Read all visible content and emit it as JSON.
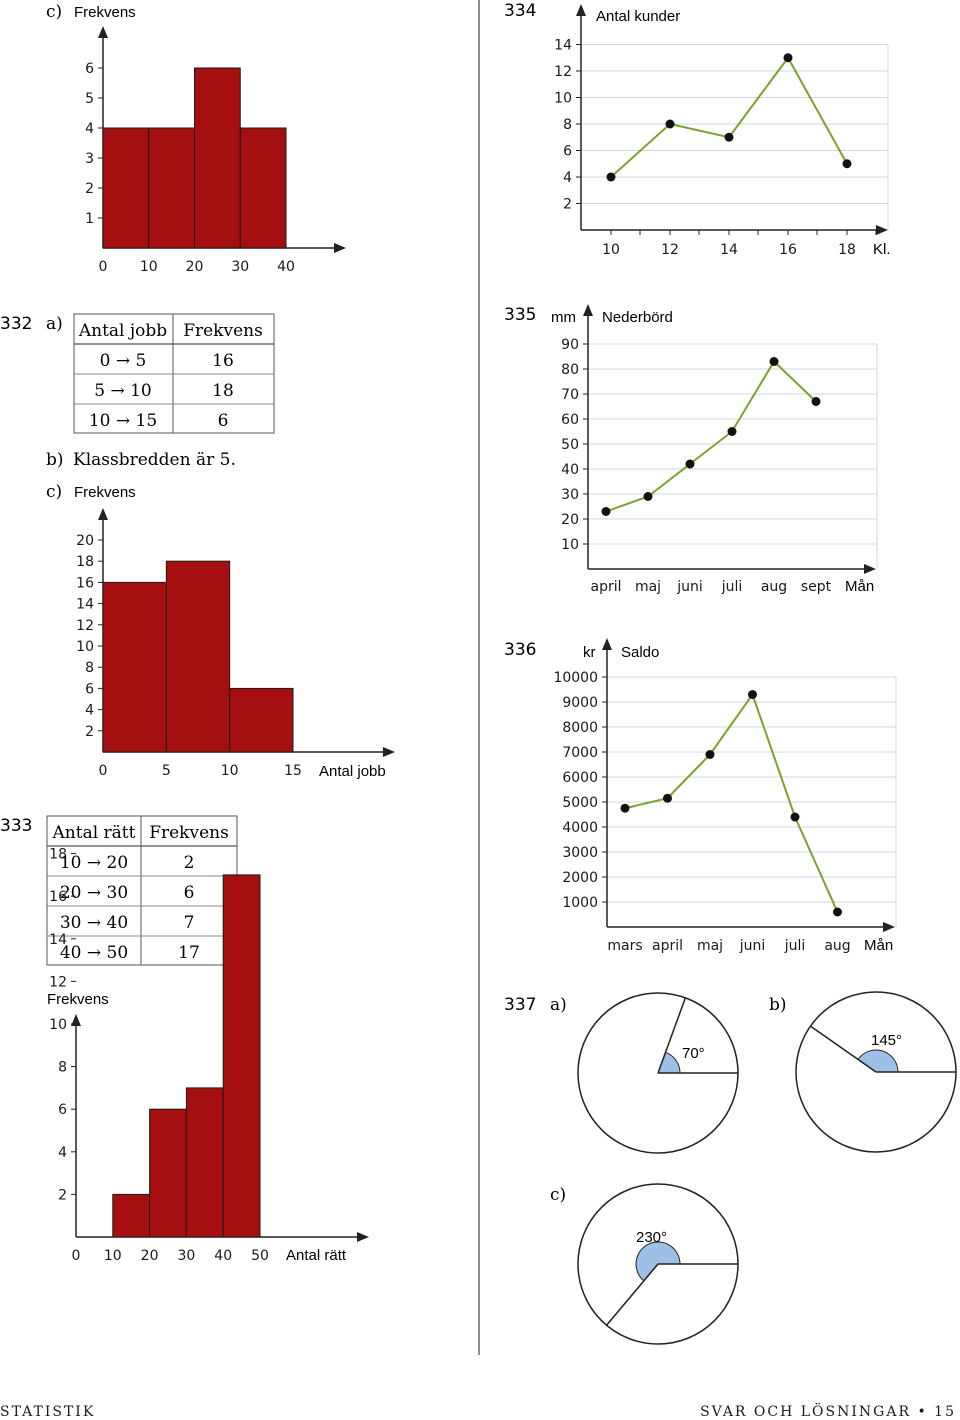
{
  "page": {
    "footer_left": "STATISTIK",
    "footer_right": "SVAR OCH LÖSNINGAR",
    "page_number": "15",
    "bullet": "•"
  },
  "colors": {
    "bar": "#a50f0f",
    "line": "#7aa22c",
    "grid": "#cfd8e3",
    "angle": "#9fc0e6"
  },
  "p331c": {
    "part": "c)",
    "ylabel": "Frekvens"
  },
  "p332": {
    "number": "332",
    "a_label": "a)",
    "table": {
      "headers": [
        "Antal jobb",
        "Frekvens"
      ],
      "rows": [
        [
          "0 → 5",
          "16"
        ],
        [
          "5 → 10",
          "18"
        ],
        [
          "10 → 15",
          "6"
        ]
      ]
    },
    "b_label": "b)",
    "b_text": "Klassbredden är 5.",
    "c_label": "c)",
    "c_ylabel": "Frekvens",
    "c_xlabel": "Antal jobb"
  },
  "p333": {
    "number": "333",
    "table": {
      "headers": [
        "Antal rätt",
        "Frekvens"
      ],
      "rows": [
        [
          "10 → 20",
          "2"
        ],
        [
          "20 → 30",
          "6"
        ],
        [
          "30 → 40",
          "7"
        ],
        [
          "40 → 50",
          "17"
        ]
      ]
    },
    "ylabel": "Frekvens",
    "xlabel": "Antal rätt"
  },
  "p334": {
    "number": "334",
    "title": "Antal kunder",
    "xunit": "Kl."
  },
  "p335": {
    "number": "335",
    "yunit": "mm",
    "title": "Nederbörd",
    "xunit": "Mån"
  },
  "p336": {
    "number": "336",
    "yunit": "kr",
    "title": "Saldo",
    "xunit": "Mån"
  },
  "p337": {
    "number": "337",
    "a_label": "a)",
    "a_angle": "70°",
    "b_label": "b)",
    "b_angle": "145°",
    "c_label": "c)",
    "c_angle": "230°",
    "angles": [
      70,
      145,
      230
    ]
  },
  "chart_data": [
    {
      "id": "hist331c",
      "type": "bar",
      "title": "",
      "xlabel": "",
      "ylabel": "Frekvens",
      "bins": [
        [
          0,
          10
        ],
        [
          10,
          20
        ],
        [
          20,
          30
        ],
        [
          30,
          40
        ]
      ],
      "values": [
        4,
        4,
        6,
        4
      ],
      "xticks": [
        0,
        10,
        20,
        30,
        40
      ],
      "yticks": [
        1,
        2,
        3,
        4,
        5,
        6
      ],
      "grid": false
    },
    {
      "id": "hist332",
      "type": "bar",
      "title": "",
      "xlabel": "Antal jobb",
      "ylabel": "Frekvens",
      "bins": [
        [
          0,
          5
        ],
        [
          5,
          10
        ],
        [
          10,
          15
        ]
      ],
      "values": [
        16,
        18,
        6
      ],
      "xticks": [
        0,
        5,
        10,
        15
      ],
      "yticks": [
        2,
        4,
        6,
        8,
        10,
        12,
        14,
        16,
        18,
        20
      ],
      "grid": false
    },
    {
      "id": "hist333",
      "type": "bar",
      "title": "",
      "xlabel": "Antal rätt",
      "ylabel": "Frekvens",
      "bins": [
        [
          10,
          20
        ],
        [
          20,
          30
        ],
        [
          30,
          40
        ],
        [
          40,
          50
        ]
      ],
      "values": [
        2,
        6,
        7,
        17
      ],
      "xticks": [
        0,
        10,
        20,
        30,
        40,
        50
      ],
      "yticks": [
        2,
        4,
        6,
        8,
        10,
        12,
        14,
        16,
        18
      ],
      "grid": false
    },
    {
      "id": "line334",
      "type": "line",
      "title": "Antal kunder",
      "xlabel": "Kl.",
      "ylabel": "",
      "x": [
        10,
        12,
        14,
        16,
        18
      ],
      "values": [
        4,
        8,
        7,
        13,
        5
      ],
      "xticks": [
        "10",
        "12",
        "14",
        "16",
        "18"
      ],
      "yticks": [
        2,
        4,
        6,
        8,
        10,
        12,
        14
      ],
      "grid": true
    },
    {
      "id": "line335",
      "type": "line",
      "title": "Nederbörd",
      "xlabel": "Mån",
      "ylabel": "mm",
      "categories": [
        "april",
        "maj",
        "juni",
        "juli",
        "aug",
        "sept"
      ],
      "values": [
        23,
        29,
        42,
        55,
        83,
        67
      ],
      "yticks": [
        10,
        20,
        30,
        40,
        50,
        60,
        70,
        80,
        90
      ],
      "grid": true
    },
    {
      "id": "line336",
      "type": "line",
      "title": "Saldo",
      "xlabel": "Mån",
      "ylabel": "kr",
      "categories": [
        "mars",
        "april",
        "maj",
        "juni",
        "juli",
        "aug"
      ],
      "values": [
        4750,
        5150,
        6900,
        9300,
        4400,
        600
      ],
      "yticks": [
        1000,
        2000,
        3000,
        4000,
        5000,
        6000,
        7000,
        8000,
        9000,
        10000
      ],
      "grid": true
    }
  ]
}
